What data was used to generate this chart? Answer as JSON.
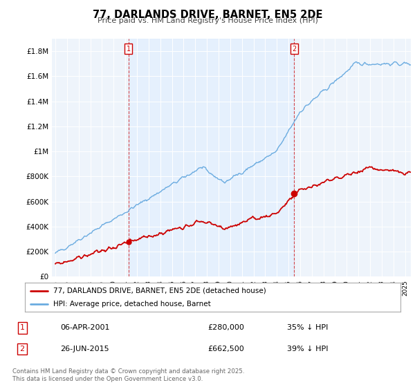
{
  "title": "77, DARLANDS DRIVE, BARNET, EN5 2DE",
  "subtitle": "Price paid vs. HM Land Registry's House Price Index (HPI)",
  "ylabel_ticks": [
    "£0",
    "£200K",
    "£400K",
    "£600K",
    "£800K",
    "£1M",
    "£1.2M",
    "£1.4M",
    "£1.6M",
    "£1.8M"
  ],
  "ytick_values": [
    0,
    200000,
    400000,
    600000,
    800000,
    1000000,
    1200000,
    1400000,
    1600000,
    1800000
  ],
  "ylim": [
    0,
    1900000
  ],
  "xlim_start": 1994.7,
  "xlim_end": 2025.5,
  "hpi_color": "#6aabe0",
  "hpi_fill_color": "#ddeeff",
  "price_color": "#cc0000",
  "marker1_date": 2001.27,
  "marker1_value": 280000,
  "marker2_date": 2015.48,
  "marker2_value": 662500,
  "legend_line1": "77, DARLANDS DRIVE, BARNET, EN5 2DE (detached house)",
  "legend_line2": "HPI: Average price, detached house, Barnet",
  "footnote": "Contains HM Land Registry data © Crown copyright and database right 2025.\nThis data is licensed under the Open Government Licence v3.0.",
  "background_color": "#eef4fb"
}
